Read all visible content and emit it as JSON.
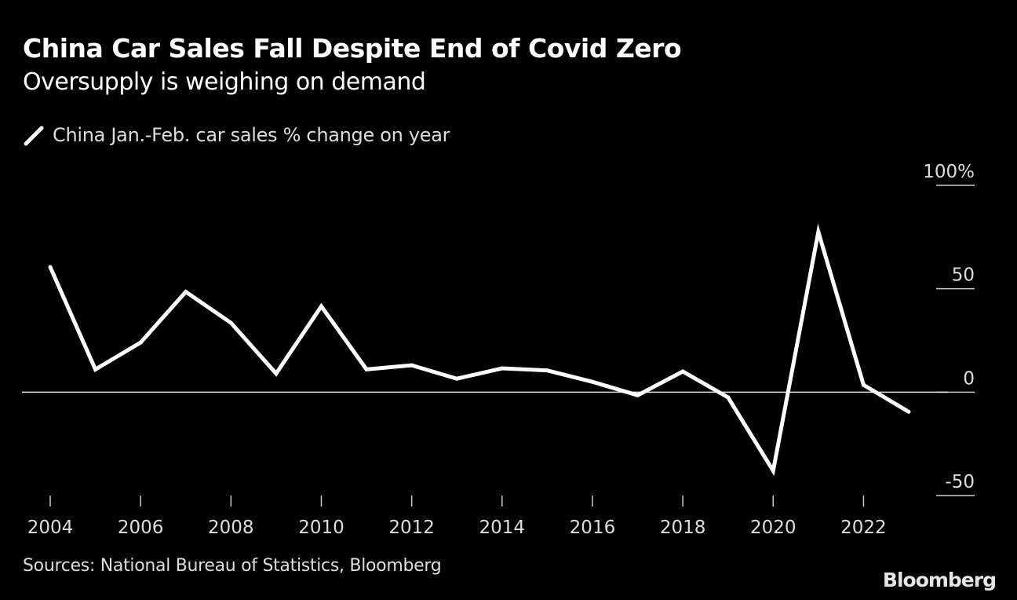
{
  "chart_data": {
    "type": "line",
    "title": "China Car Sales Fall Despite End of Covid Zero",
    "subtitle": "Oversupply is weighing on demand",
    "xlabel": "",
    "ylabel": "",
    "x": [
      2004,
      2005,
      2006,
      2007,
      2008,
      2009,
      2010,
      2011,
      2012,
      2013,
      2014,
      2015,
      2016,
      2017,
      2018,
      2019,
      2020,
      2021,
      2022,
      2023
    ],
    "x_ticks": [
      "2004",
      "2006",
      "2008",
      "2010",
      "2012",
      "2014",
      "2016",
      "2018",
      "2020",
      "2022"
    ],
    "y_ticks": [
      "100%",
      "50",
      "0",
      "-50"
    ],
    "ylim": [
      -50,
      100
    ],
    "series": [
      {
        "name": "China Jan.-Feb. car sales % change on year",
        "color": "#ffffff",
        "values": [
          60.5,
          11,
          24,
          48.5,
          33.5,
          9,
          41.5,
          11,
          13,
          6.5,
          11.5,
          10.5,
          5,
          -1.5,
          10,
          -2.5,
          -38,
          77.5,
          3.5,
          -9.5
        ]
      }
    ],
    "grid": false,
    "zero_line": true,
    "legend_position": "top-left"
  },
  "source": "Sources: National Bureau of Statistics, Bloomberg",
  "brand": "Bloomberg",
  "colors": {
    "background": "#000000",
    "line": "#ffffff",
    "text": "#dddddd"
  }
}
